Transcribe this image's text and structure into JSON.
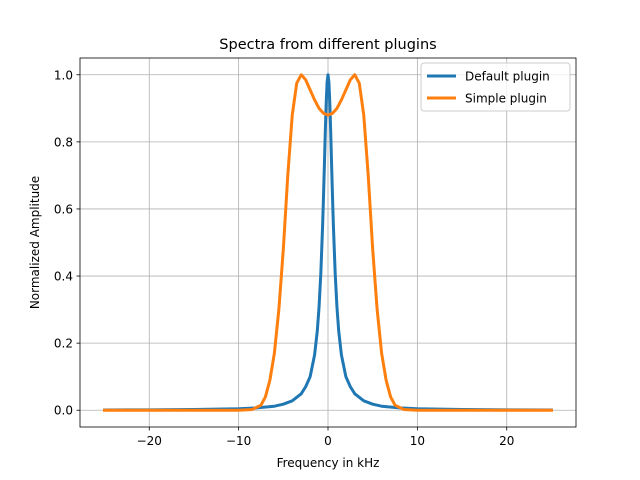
{
  "chart_data": {
    "type": "line",
    "title": "Spectra from different plugins",
    "xlabel": "Frequency in kHz",
    "ylabel": "Normalized Amplitude",
    "xlim": [
      -27.75,
      27.75
    ],
    "ylim": [
      -0.05,
      1.05
    ],
    "xticks": [
      -20,
      -10,
      0,
      10,
      20
    ],
    "xtick_labels": [
      "−20",
      "−10",
      "0",
      "10",
      "20"
    ],
    "yticks": [
      0.0,
      0.2,
      0.4,
      0.6,
      0.8,
      1.0
    ],
    "ytick_labels": [
      "0.0",
      "0.2",
      "0.4",
      "0.6",
      "0.8",
      "1.0"
    ],
    "grid": true,
    "legend_position": "top-right",
    "series": [
      {
        "name": "Default plugin",
        "color": "#1f77b4",
        "x": [
          -25,
          -20,
          -15,
          -10,
          -8,
          -6,
          -5,
          -4,
          -3,
          -2.5,
          -2,
          -1.5,
          -1.2,
          -1,
          -0.8,
          -0.6,
          -0.5,
          -0.4,
          -0.3,
          -0.2,
          -0.1,
          0,
          0.1,
          0.2,
          0.3,
          0.4,
          0.5,
          0.6,
          0.8,
          1,
          1.2,
          1.5,
          2,
          2.5,
          3,
          4,
          5,
          6,
          8,
          10,
          15,
          20,
          25
        ],
        "y": [
          0.0007,
          0.0011,
          0.002,
          0.0045,
          0.007,
          0.012,
          0.018,
          0.028,
          0.049,
          0.07,
          0.1,
          0.165,
          0.236,
          0.308,
          0.41,
          0.553,
          0.64,
          0.735,
          0.832,
          0.917,
          0.978,
          1.0,
          0.978,
          0.917,
          0.832,
          0.735,
          0.64,
          0.553,
          0.41,
          0.308,
          0.236,
          0.165,
          0.1,
          0.07,
          0.049,
          0.028,
          0.018,
          0.012,
          0.007,
          0.0045,
          0.002,
          0.0011,
          0.0007
        ]
      },
      {
        "name": "Simple plugin",
        "color": "#ff7f0e",
        "x": [
          -25,
          -15,
          -10,
          -8.5,
          -7.5,
          -7,
          -6.5,
          -6,
          -5.5,
          -5,
          -4.5,
          -4,
          -3.5,
          -3,
          -2.5,
          -2,
          -1.5,
          -1,
          -0.5,
          0,
          0.5,
          1,
          1.5,
          2,
          2.5,
          3,
          3.5,
          4,
          4.5,
          5,
          5.5,
          6,
          6.5,
          7,
          7.5,
          8.5,
          10,
          15,
          25
        ],
        "y": [
          0.0,
          0.0,
          0.0,
          0.002,
          0.015,
          0.04,
          0.09,
          0.17,
          0.3,
          0.48,
          0.7,
          0.88,
          0.975,
          1.0,
          0.985,
          0.955,
          0.925,
          0.9,
          0.885,
          0.88,
          0.885,
          0.9,
          0.925,
          0.955,
          0.985,
          1.0,
          0.975,
          0.88,
          0.7,
          0.48,
          0.3,
          0.17,
          0.09,
          0.04,
          0.015,
          0.002,
          0.0,
          0.0,
          0.0
        ]
      }
    ]
  }
}
